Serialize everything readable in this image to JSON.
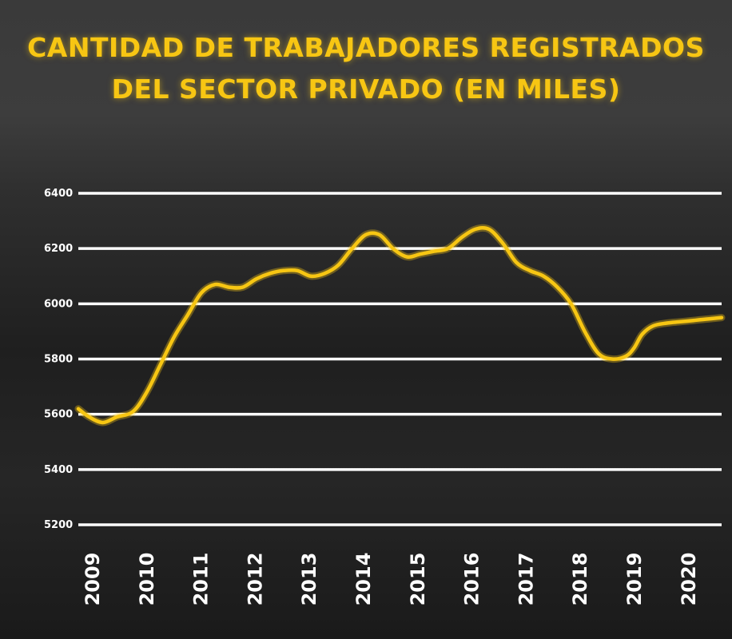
{
  "title_lines": [
    "CANTIDAD DE TRABAJADORES REGISTRADOS",
    "DEL SECTOR PRIVADO (EN MILES)"
  ],
  "colors": {
    "line": "#f7c613",
    "grid": "#ffffff",
    "title": "#f7c613",
    "labels": "#ffffff"
  },
  "chart_data": {
    "type": "line",
    "title": "CANTIDAD DE TRABAJADORES REGISTRADOS DEL SECTOR PRIVADO (EN MILES)",
    "xlabel": "",
    "ylabel": "",
    "ylim": [
      5200,
      6400
    ],
    "yticks": [
      5200,
      5400,
      5600,
      5800,
      6000,
      6200,
      6400
    ],
    "xticks": [
      "2009",
      "2010",
      "2011",
      "2012",
      "2013",
      "2014",
      "2015",
      "2016",
      "2017",
      "2018",
      "2019",
      "2020"
    ],
    "grid": true,
    "series": [
      {
        "x": [
          2009.0,
          2009.2,
          2009.45,
          2009.7,
          2010.0,
          2010.25,
          2010.5,
          2010.75,
          2011.0,
          2011.25,
          2011.5,
          2011.75,
          2012.0,
          2012.25,
          2012.5,
          2012.75,
          2013.0,
          2013.25,
          2013.5,
          2013.75,
          2014.0,
          2014.25,
          2014.5,
          2014.75,
          2015.0,
          2015.25,
          2015.5,
          2015.75,
          2016.0,
          2016.25,
          2016.5,
          2016.75,
          2017.0,
          2017.25,
          2017.5,
          2017.75,
          2018.0,
          2018.25,
          2018.5,
          2018.75,
          2019.0,
          2019.15,
          2019.3,
          2019.5,
          2019.75,
          2020.0,
          2020.25,
          2020.5,
          2020.75
        ],
        "values": [
          5620,
          5590,
          5570,
          5590,
          5610,
          5680,
          5780,
          5880,
          5960,
          6040,
          6070,
          6060,
          6060,
          6090,
          6110,
          6120,
          6120,
          6100,
          6110,
          6140,
          6200,
          6250,
          6250,
          6200,
          6170,
          6180,
          6190,
          6200,
          6240,
          6270,
          6270,
          6220,
          6150,
          6120,
          6100,
          6060,
          6000,
          5900,
          5820,
          5800,
          5810,
          5840,
          5890,
          5920,
          5930,
          5935,
          5940,
          5945,
          5950
        ]
      }
    ]
  }
}
